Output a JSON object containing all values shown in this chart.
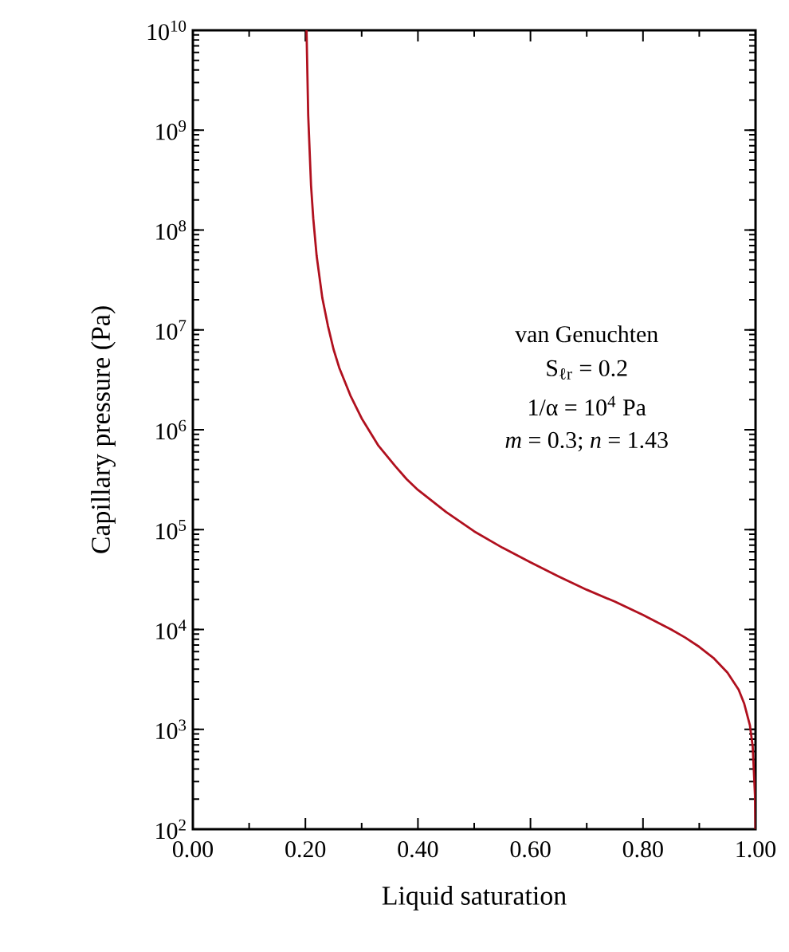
{
  "chart_data": {
    "type": "line",
    "xlabel": "Liquid saturation",
    "ylabel": "Capillary pressure (Pa)",
    "annotations": [
      "van Genuchten",
      "S$_{ℓr}$ = 0.2",
      "1/α = 10$^{4}$ Pa",
      "*m* = 0.3; *n* = 1.43"
    ],
    "log": "y",
    "grid": false,
    "marker": "none",
    "line_style": "solid",
    "xlim": [
      0,
      1
    ],
    "ylim": [
      100,
      10000000000
    ],
    "xticks": [
      {
        "value": 0,
        "label": "0.00"
      },
      {
        "value": 0.2,
        "label": "0.20"
      },
      {
        "value": 0.4,
        "label": "0.40"
      },
      {
        "value": 0.6,
        "label": "0.60"
      },
      {
        "value": 0.8,
        "label": "0.80"
      },
      {
        "value": 1,
        "label": "1.00"
      }
    ],
    "yticks": [
      {
        "value": 100,
        "label": "10$^{2}$"
      },
      {
        "value": 1000,
        "label": "10$^{3}$"
      },
      {
        "value": 10000,
        "label": "10$^{4}$"
      },
      {
        "value": 100000,
        "label": "10$^{5}$"
      },
      {
        "value": 1000000,
        "label": "10$^{6}$"
      },
      {
        "value": 10000000,
        "label": "10$^{7}$"
      },
      {
        "value": 100000000,
        "label": "10$^{8}$"
      },
      {
        "value": 1000000000,
        "label": "10$^{9}$"
      },
      {
        "value": 10000000000,
        "label": "10$^{10}$"
      }
    ],
    "series": [
      {
        "color": "#b0101e",
        "x": [
          0.202,
          0.205,
          0.21,
          0.214,
          0.22,
          0.23,
          0.24,
          0.25,
          0.26,
          0.28,
          0.3,
          0.33,
          0.36,
          0.38,
          0.4,
          0.45,
          0.5,
          0.55,
          0.6,
          0.65,
          0.7,
          0.75,
          0.8,
          0.85,
          0.875,
          0.9,
          0.925,
          0.95,
          0.97,
          0.98,
          0.99,
          0.995,
          0.999,
          1.0
        ],
        "values": [
          10000000000,
          1400000000,
          280000000,
          130000000,
          55000000,
          21000000,
          11000000,
          6400000,
          4200000,
          2200000,
          1300000,
          690000,
          430000,
          320000,
          250000,
          150000,
          96000,
          66000,
          47000,
          34000,
          25000,
          19000,
          14000,
          10000,
          8300,
          6700,
          5200,
          3700,
          2500,
          1800,
          1100,
          670,
          220,
          100
        ]
      }
    ]
  }
}
